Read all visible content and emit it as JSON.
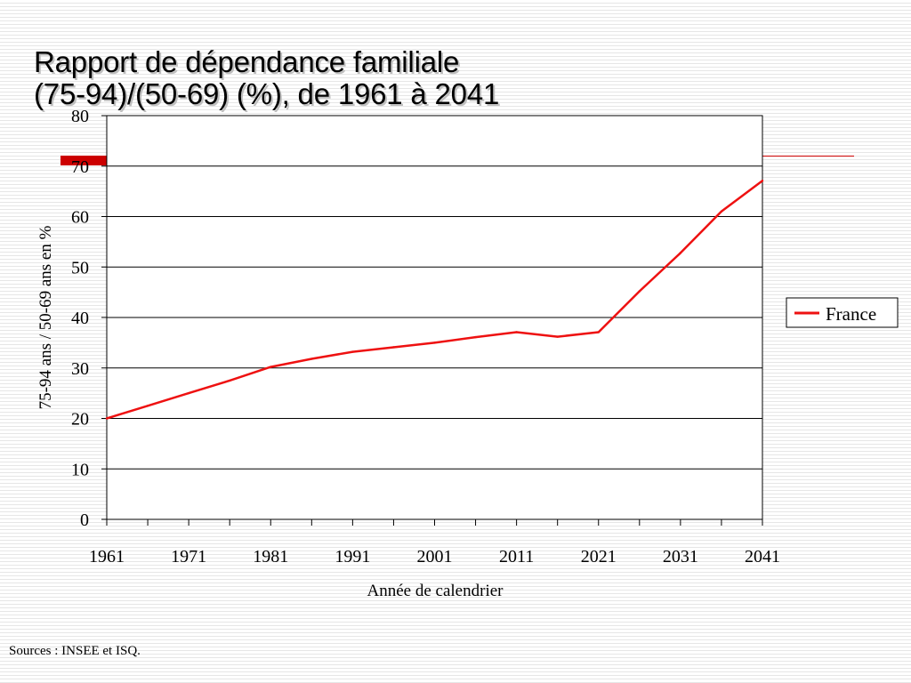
{
  "slide": {
    "title_line1": "Rapport de dépendance familiale",
    "title_line2": "(75-94)/(50-69) (%), de 1961 à 2041",
    "source": "Sources : INSEE et ISQ.",
    "accent_color": "#cc0000"
  },
  "chart_data": {
    "type": "line",
    "title": "Rapport de dépendance familiale (75-94)/(50-69) (%), de 1961 à 2041",
    "xlabel": "Année de calendrier",
    "ylabel": "75-94 ans / 50-69 ans en %",
    "xlim": [
      1961,
      2041
    ],
    "ylim": [
      0,
      80
    ],
    "x_tick_labels": [
      "1961",
      "1971",
      "1981",
      "1991",
      "2001",
      "2011",
      "2021",
      "2031",
      "2041"
    ],
    "y_tick_labels": [
      "0",
      "10",
      "20",
      "30",
      "40",
      "50",
      "60",
      "70",
      "80"
    ],
    "grid": true,
    "legend_position": "right",
    "series": [
      {
        "name": "France",
        "color": "#ee1111",
        "x": [
          1961,
          1966,
          1971,
          1976,
          1981,
          1986,
          1991,
          1996,
          2001,
          2006,
          2011,
          2016,
          2021,
          2026,
          2031,
          2036,
          2041
        ],
        "y": [
          20,
          22.5,
          25,
          27.5,
          30.2,
          31.8,
          33.2,
          34.1,
          35,
          36.1,
          37.1,
          36.2,
          37.1,
          45.2,
          52.8,
          61,
          67.1
        ]
      }
    ]
  }
}
